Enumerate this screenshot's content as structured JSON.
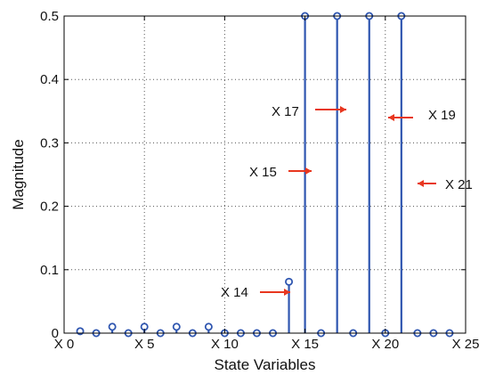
{
  "chart_data": {
    "type": "stem",
    "title": "",
    "xlabel": "State Variables",
    "ylabel": "Magnitude",
    "xlim": [
      0,
      25
    ],
    "ylim": [
      0,
      0.5
    ],
    "grid": true,
    "grid_style": "dotted",
    "series_color": "#2f56b0",
    "arrow_color": "#e8371f",
    "x_ticks": [
      {
        "value": 0,
        "label": "X 0"
      },
      {
        "value": 5,
        "label": "X 5"
      },
      {
        "value": 10,
        "label": "X 10"
      },
      {
        "value": 15,
        "label": "X 15"
      },
      {
        "value": 20,
        "label": "X 20"
      },
      {
        "value": 25,
        "label": "X 25"
      }
    ],
    "y_ticks": [
      {
        "value": 0,
        "label": "0"
      },
      {
        "value": 0.1,
        "label": "0.1"
      },
      {
        "value": 0.2,
        "label": "0.2"
      },
      {
        "value": 0.3,
        "label": "0.3"
      },
      {
        "value": 0.4,
        "label": "0.4"
      },
      {
        "value": 0.5,
        "label": "0.5"
      }
    ],
    "x": [
      1,
      2,
      3,
      4,
      5,
      6,
      7,
      8,
      9,
      10,
      11,
      12,
      13,
      14,
      15,
      16,
      17,
      18,
      19,
      20,
      21,
      22,
      23,
      24
    ],
    "y": [
      0.003,
      0,
      0.01,
      0,
      0.01,
      0,
      0.01,
      0,
      0.01,
      0,
      0,
      0,
      0,
      0.081,
      0.5,
      0,
      0.5,
      0,
      0.5,
      0,
      0.5,
      0,
      0,
      0
    ],
    "annotations": [
      {
        "text": "X 14",
        "target_x": 14,
        "target_y": 0.08
      },
      {
        "text": "X 15",
        "target_x": 15,
        "target_y": 0.255
      },
      {
        "text": "X 17",
        "target_x": 17,
        "target_y": 0.355
      },
      {
        "text": "X 19",
        "target_x": 19,
        "target_y": 0.34
      },
      {
        "text": "X 21",
        "target_x": 21,
        "target_y": 0.24
      }
    ]
  }
}
